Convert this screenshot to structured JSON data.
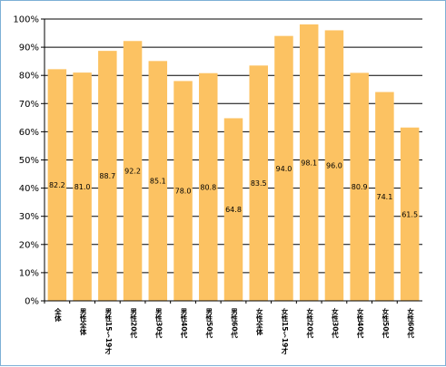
{
  "chart_data": {
    "type": "bar",
    "title": "",
    "xlabel": "",
    "ylabel": "",
    "ylim": [
      0,
      100
    ],
    "yticks": [
      "0%",
      "10%",
      "20%",
      "30%",
      "40%",
      "50%",
      "60%",
      "70%",
      "80%",
      "90%",
      "100%"
    ],
    "categories": [
      "全体",
      "男性全体",
      "男性15〜19才",
      "男性20代",
      "男性30代",
      "男性40代",
      "男性50代",
      "男性60代",
      "女性全体",
      "女性15〜19才",
      "女性20代",
      "女性30代",
      "女性40代",
      "女性50代",
      "女性60代"
    ],
    "values": [
      82.2,
      81.0,
      88.7,
      92.2,
      85.1,
      78.0,
      80.8,
      64.8,
      83.5,
      94.0,
      98.1,
      96.0,
      80.9,
      74.1,
      61.5
    ],
    "value_labels": [
      "82.2",
      "81.0",
      "88.7",
      "92.2",
      "85.1",
      "78.0",
      "80.8",
      "64.8",
      "83.5",
      "94.0",
      "98.1",
      "96.0",
      "80.9",
      "74.1",
      "61.5"
    ],
    "grid": true,
    "legend": "none",
    "colors": {
      "bar": "#fcc262",
      "grid": "#000000",
      "axis": "#000000",
      "frame": "#7db0d6"
    }
  }
}
